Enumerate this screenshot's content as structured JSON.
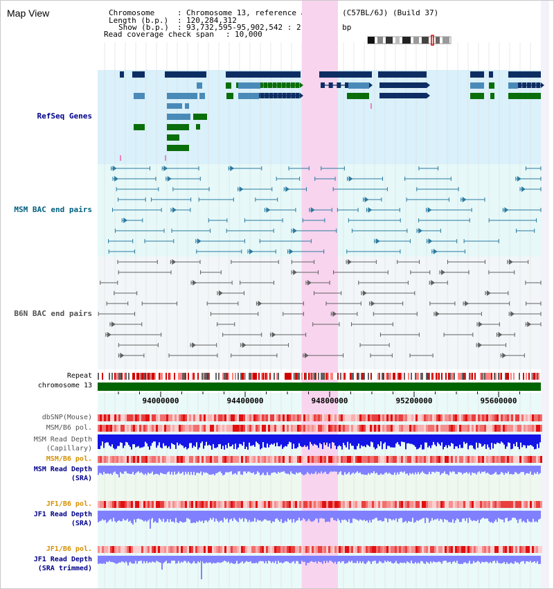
{
  "view": {
    "title": "Map View"
  },
  "header": {
    "chromosome_key": "Chromosome",
    "chromosome_value": "Chromosome 13, reference assembly (C57BL/6J) (Build 37)",
    "length_key": "Length (b.p.)",
    "length_value": "120,284,312",
    "show_key": "Show (b.p.)",
    "show_value": "93,732,595-95,902,542 : 2,169,948 bp",
    "coverage_key": "Read coverage check span",
    "coverage_value": "10,000"
  },
  "tracks": {
    "refseq": "RefSeq Genes",
    "msm_bac": "MSM BAC end pairs",
    "b6n_bac": "B6N BAC end pairs",
    "repeat": "Repeat",
    "chromosome": "chromosome 13",
    "dbsnp": "dbSNP(Mouse)",
    "msm_b6_pol": "MSM/B6 pol.",
    "msm_rd_cap_1": "MSM Read Depth",
    "msm_rd_cap_2": "(Capillary)",
    "msm_b6_pol_sra": "MSM/B6 pol.",
    "msm_rd_sra_1": "MSM Read Depth",
    "msm_rd_sra_2": "(SRA)",
    "jf1_b6_pol": "JF1/B6 pol.",
    "jf1_rd_sra_1": "JF1 Read Depth",
    "jf1_rd_sra_2": "(SRA)",
    "jf1_b6_pol_2": "JF1/B6 pol.",
    "jf1_rd_trim_1": "JF1 Read Depth",
    "jf1_rd_trim_2": "(SRA trimmed)"
  },
  "axis": {
    "ticks": [
      "94000000",
      "94400000",
      "94800000",
      "95200000",
      "95600000"
    ]
  },
  "colors": {
    "refseq_bg": "#daf0fa",
    "msm_bg": "#e6f8f8",
    "b6n_bg": "#f2f6f8",
    "highlight": "#f8d4ee",
    "gene_navy": "#0d2d63",
    "gene_steel": "#4a8ab8",
    "gene_green": "#0a6e0a",
    "msm_line": "#2a7aa0",
    "b6n_line": "#606060",
    "chrom_green": "#006400",
    "depth_blue": "#1414e6",
    "depth_light": "#8080ff",
    "label_navy": "#00008b",
    "label_teal": "#005f7f",
    "label_gray": "#505050",
    "label_orange": "#d49000"
  }
}
